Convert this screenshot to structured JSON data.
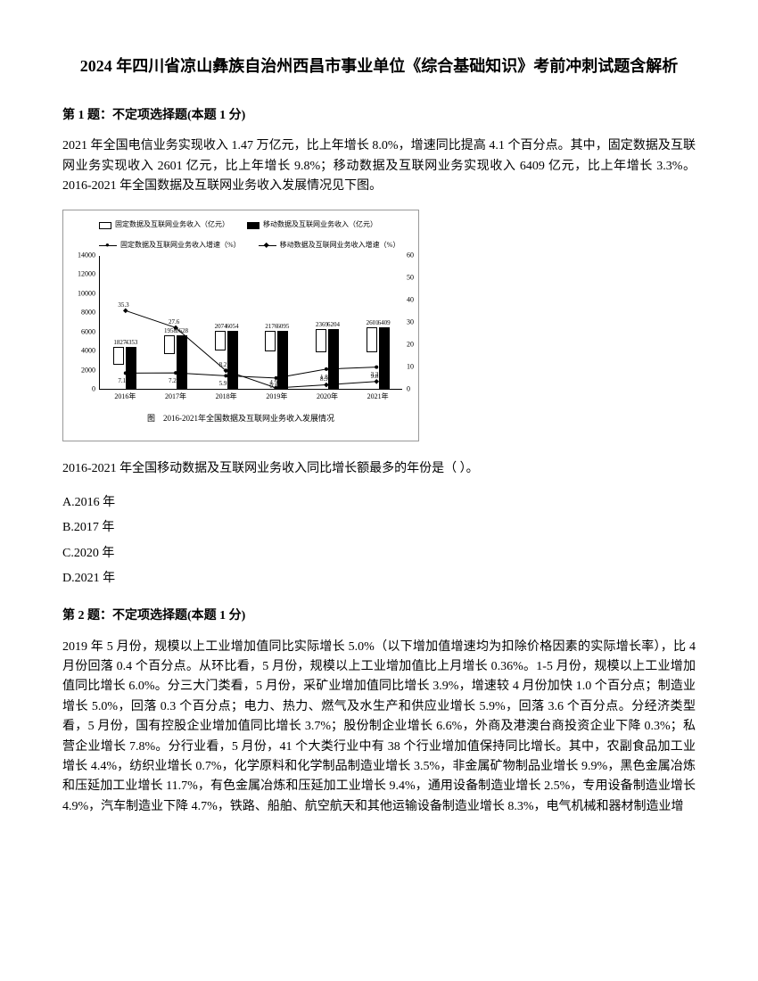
{
  "title": "2024 年四川省凉山彝族自治州西昌市事业单位《综合基础知识》考前冲刺试题含解析",
  "q1": {
    "header": "第 1 题：不定项选择题(本题 1 分)",
    "body": "2021 年全国电信业务实现收入 1.47 万亿元，比上年增长 8.0%，增速同比提高 4.1 个百分点。其中，固定数据及互联网业务实现收入 2601 亿元，比上年增长 9.8%；移动数据及互联网业务实现收入 6409 亿元，比上年增长 3.3%。2016-2021 年全国数据及互联网业务收入发展情况见下图。",
    "question": "2016-2021 年全国移动数据及互联网业务收入同比增长额最多的年份是（ ）。",
    "optA": "A.2016 年",
    "optB": "B.2017 年",
    "optC": "C.2020 年",
    "optD": "D.2021 年"
  },
  "chart": {
    "legend1": "固定数据及互联网业务收入（亿元）",
    "legend2": "移动数据及互联网业务收入（亿元）",
    "legend3": "固定数据及互联网业务收入增速（%）",
    "legend4": "移动数据及互联网业务收入增速（%）",
    "caption": "图　2016-2021年全国数据及互联网业务收入发展情况",
    "years": [
      "2016年",
      "2017年",
      "2018年",
      "2019年",
      "2020年",
      "2021年"
    ],
    "fixed_values": [
      1827,
      1958,
      2074,
      2176,
      2369,
      2601
    ],
    "mobile_values": [
      4353,
      5628,
      6054,
      6095,
      6204,
      6409
    ],
    "fixed_growth": [
      7.1,
      7.2,
      5.9,
      4.9,
      8.9,
      9.8
    ],
    "mobile_growth": [
      35.3,
      27.6,
      8.2,
      0.4,
      1.8,
      3.3
    ],
    "y_max": 14000,
    "y_ticks": [
      0,
      2000,
      4000,
      6000,
      8000,
      10000,
      12000,
      14000
    ],
    "r_ticks": [
      0,
      10,
      20,
      30,
      40,
      50,
      60
    ],
    "line_labels_top": [
      "35.3",
      "27.6",
      "8.2",
      "4.9",
      "8.9",
      "9.8"
    ],
    "line_labels_bot": [
      "7.1",
      "7.2",
      "5.9",
      "0.4",
      "1.8",
      "3.3"
    ]
  },
  "q2": {
    "header": "第 2 题：不定项选择题(本题 1 分)",
    "body": "2019 年 5 月份，规模以上工业增加值同比实际增长 5.0%（以下增加值增速均为扣除价格因素的实际增长率），比 4 月份回落 0.4 个百分点。从环比看，5 月份，规模以上工业增加值比上月增长 0.36%。1-5 月份，规模以上工业增加值同比增长 6.0%。分三大门类看，5 月份，采矿业增加值同比增长 3.9%，增速较 4 月份加快 1.0 个百分点；制造业增长 5.0%，回落 0.3 个百分点；电力、热力、燃气及水生产和供应业增长 5.9%，回落 3.6 个百分点。分经济类型看，5 月份，国有控股企业增加值同比增长 3.7%；股份制企业增长 6.6%，外商及港澳台商投资企业下降 0.3%；私营企业增长 7.8%。分行业看，5 月份，41 个大类行业中有 38 个行业增加值保持同比增长。其中，农副食品加工业增长 4.4%，纺织业增长 0.7%，化学原料和化学制品制造业增长 3.5%，非金属矿物制品业增长 9.9%，黑色金属冶炼和压延加工业增长 11.7%，有色金属冶炼和压延加工业增长 9.4%，通用设备制造业增长 2.5%，专用设备制造业增长 4.9%，汽车制造业下降 4.7%，铁路、船舶、航空航天和其他运输设备制造业增长 8.3%，电气机械和器材制造业增"
  }
}
